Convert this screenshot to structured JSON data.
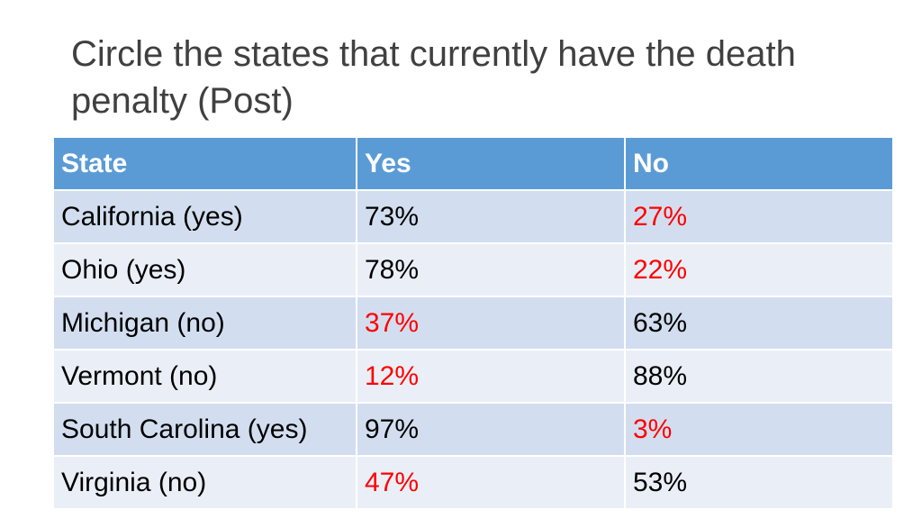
{
  "title": "Circle the states that currently have the death penalty (Post)",
  "colors": {
    "header_bg": "#5b9bd5",
    "row_odd_bg": "#d2deef",
    "row_even_bg": "#eaeff7",
    "highlight_text": "#ff0000"
  },
  "table": {
    "headers": [
      "State",
      "Yes",
      "No"
    ],
    "rows": [
      {
        "state": "California (yes)",
        "yes": "73%",
        "no": "27%",
        "red": "no"
      },
      {
        "state": "Ohio (yes)",
        "yes": "78%",
        "no": "22%",
        "red": "no"
      },
      {
        "state": "Michigan (no)",
        "yes": "37%",
        "no": "63%",
        "red": "yes"
      },
      {
        "state": "Vermont (no)",
        "yes": "12%",
        "no": "88%",
        "red": "yes"
      },
      {
        "state": "South Carolina (yes)",
        "yes": "97%",
        "no": "3%",
        "red": "no"
      },
      {
        "state": "Virginia (no)",
        "yes": "47%",
        "no": "53%",
        "red": "yes"
      }
    ]
  }
}
